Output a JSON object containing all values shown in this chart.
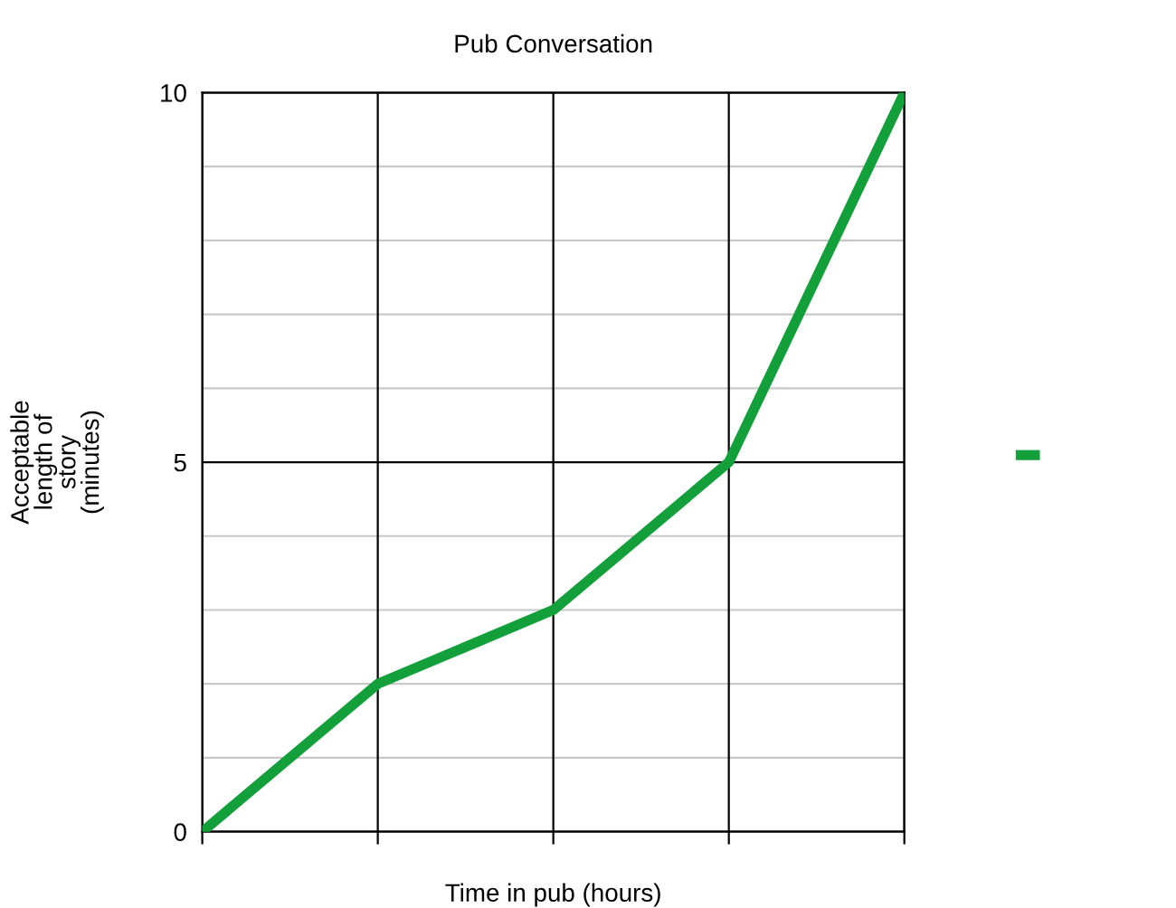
{
  "chart_data": {
    "type": "line",
    "title": "Pub Conversation",
    "xlabel": "Time in pub (hours)",
    "ylabel": "Acceptable\nlength of\nstory\n(minutes)",
    "categories": [
      null,
      null,
      null,
      null,
      null
    ],
    "series": [
      {
        "color": "#13a03a",
        "values": [
          0,
          2,
          3,
          5,
          10
        ]
      }
    ],
    "ylim": [
      0,
      10
    ],
    "yticks": [
      0,
      {
        "value": 1,
        "label": null
      },
      {
        "value": 2,
        "label": null
      },
      {
        "value": 3,
        "label": null
      },
      {
        "value": 4,
        "label": null
      },
      5,
      {
        "value": 6,
        "label": null
      },
      {
        "value": 7,
        "label": null
      },
      {
        "value": 8,
        "label": null
      },
      {
        "value": 9,
        "label": null
      },
      10
    ],
    "grid": true,
    "marker": "none",
    "line_style": "solid"
  }
}
